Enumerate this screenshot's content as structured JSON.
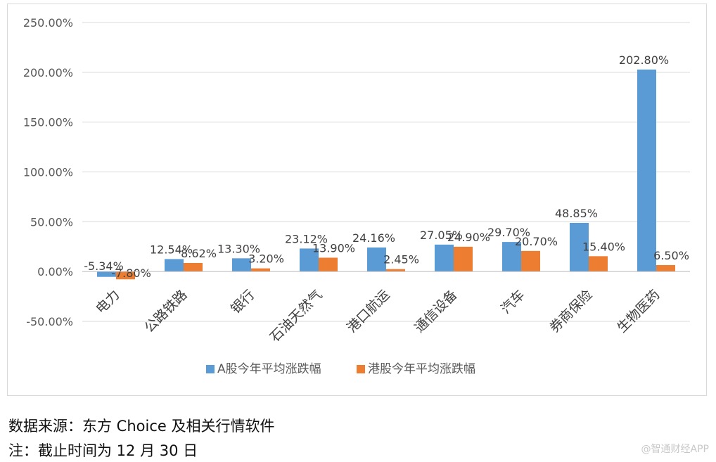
{
  "chart_data": {
    "type": "bar",
    "categories": [
      "电力",
      "公路铁路",
      "银行",
      "石油天然气",
      "港口航运",
      "通信设备",
      "汽车",
      "券商保险",
      "生物医药"
    ],
    "series": [
      {
        "name": "A股今年平均涨跌幅",
        "values": [
          -5.34,
          12.54,
          13.3,
          23.12,
          24.16,
          27.05,
          29.7,
          48.85,
          202.8
        ],
        "labels": [
          "-5.34%",
          "12.54%",
          "13.30%",
          "23.12%",
          "24.16%",
          "27.05%",
          "29.70%",
          "48.85%",
          "202.80%"
        ]
      },
      {
        "name": "港股今年平均涨跌幅",
        "values": [
          -7.8,
          8.62,
          3.2,
          13.9,
          2.45,
          24.9,
          20.7,
          15.4,
          6.5
        ],
        "labels": [
          "-7.80%",
          "8.62%",
          "3.20%",
          "13.90%",
          "2.45%",
          "24.90%",
          "20.70%",
          "15.40%",
          "6.50%"
        ]
      }
    ],
    "ylim": [
      -50,
      250
    ],
    "yticks": [
      250,
      200,
      150,
      100,
      50,
      0,
      -50
    ],
    "ytick_labels": [
      "250.00%",
      "200.00%",
      "150.00%",
      "100.00%",
      "50.00%",
      "0.00%",
      "-50.00%"
    ],
    "grid": true,
    "legend_position": "bottom",
    "colors": [
      "#5b9bd5",
      "#ed7d31"
    ]
  },
  "notes": {
    "source": "数据来源：东方 Choice 及相关行情软件",
    "date": "注：截止时间为 12 月 30 日"
  },
  "watermark": "@智通财经APP"
}
